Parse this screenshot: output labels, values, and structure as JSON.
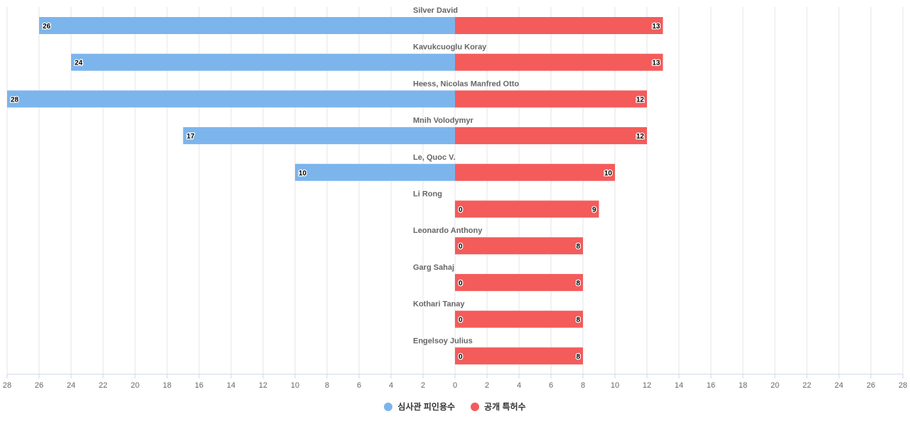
{
  "chart_data": {
    "type": "bar",
    "orientation": "horizontal-diverging",
    "categories": [
      "Silver David",
      "Kavukcuoglu Koray",
      "Heess, Nicolas Manfred Otto",
      "Mnih Volodymyr",
      "Le, Quoc V.",
      "Li Rong",
      "Leonardo Anthony",
      "Garg Sahaj",
      "Kothari Tanay",
      "Engelsoy Julius"
    ],
    "series": [
      {
        "name": "심사관 피인용수",
        "color": "#7cb5ec",
        "side": "left",
        "values": [
          26,
          24,
          28,
          17,
          10,
          0,
          0,
          0,
          0,
          0
        ]
      },
      {
        "name": "공개 특허수",
        "color": "#f45b5b",
        "side": "right",
        "values": [
          13,
          13,
          12,
          12,
          10,
          9,
          8,
          8,
          8,
          8
        ]
      }
    ],
    "xlim": [
      -28,
      28
    ],
    "x_ticks": [
      28,
      26,
      24,
      22,
      20,
      18,
      16,
      14,
      12,
      10,
      8,
      6,
      4,
      2,
      0,
      2,
      4,
      6,
      8,
      10,
      12,
      14,
      16,
      18,
      20,
      22,
      24,
      26,
      28
    ],
    "grid": true,
    "legend_position": "bottom-center"
  }
}
